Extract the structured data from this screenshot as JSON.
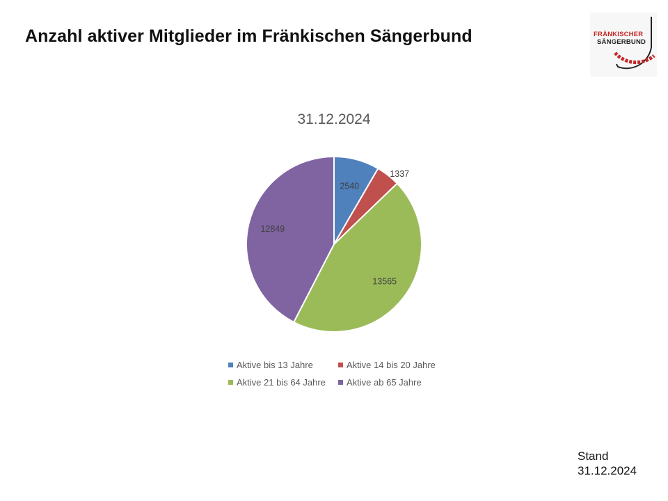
{
  "slide": {
    "title": "Anzahl aktiver Mitglieder im Fränkischen Sängerbund"
  },
  "logo": {
    "line1": "FRÄNKISCHER",
    "line2": "SÄNGERBUND",
    "colors": {
      "red": "#c62828",
      "dark": "#222222"
    }
  },
  "footer": {
    "stand_label": "Stand",
    "stand_date": "31.12.2024"
  },
  "chart_data": {
    "type": "pie",
    "title": "31.12.2024",
    "categories": [
      "Aktive bis 13 Jahre",
      "Aktive 14 bis 20 Jahre",
      "Aktive 21 bis 64 Jahre",
      "Aktive ab 65 Jahre"
    ],
    "values": [
      2540,
      1337,
      13565,
      12849
    ],
    "colors": [
      "#4f81bd",
      "#c0504d",
      "#9bbb59",
      "#8064a2"
    ],
    "data_labels": [
      "2540",
      "1337",
      "13565",
      "12849"
    ],
    "legend_position": "bottom",
    "start_angle": "12 o'clock, clockwise"
  }
}
